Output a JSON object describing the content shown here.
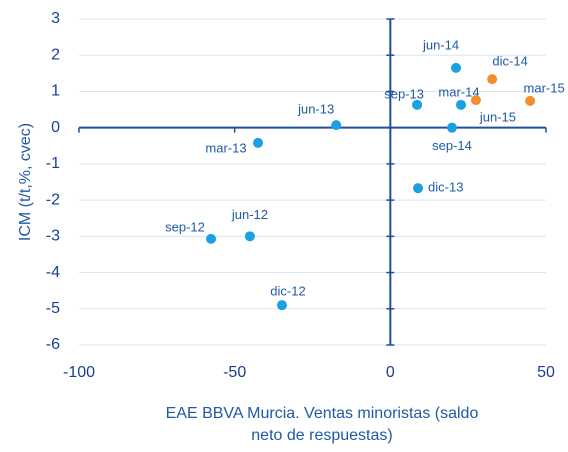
{
  "chart_data": {
    "type": "scatter",
    "y_label": "ICM (t/t,%, cvec)",
    "x_label": "EAE BBVA Murcia. Ventas minoristas (saldo neto de respuestas)",
    "xlim": [
      -100,
      50
    ],
    "xticks": [
      -100,
      -50,
      0,
      50
    ],
    "ylim": [
      -6,
      3
    ],
    "yticks": [
      -6,
      -5,
      -4,
      -3,
      -2,
      -1,
      0,
      1,
      2,
      3
    ],
    "grid": true,
    "series": [
      {
        "color": "#1ba1e2",
        "labels": [
          "jun-14",
          "sep-13",
          "mar-14",
          "sep-14",
          "jun-13",
          "mar-13",
          "dic-13",
          "jun-12",
          "sep-12",
          "dic-12"
        ],
        "x": [
          21.1,
          8.6,
          22.7,
          19.8,
          -17.4,
          -42.5,
          8.9,
          -45.1,
          -57.6,
          -34.8
        ],
        "values": [
          1.65,
          0.63,
          0.63,
          0,
          0.07,
          -0.42,
          -1.67,
          -3.0,
          -3.07,
          -4.9
        ]
      },
      {
        "color": "#f28e2b",
        "labels": [
          "dic-14",
          "jun-15",
          "mar-15"
        ],
        "x": [
          32.7,
          27.5,
          44.9
        ],
        "values": [
          1.34,
          0.76,
          0.74
        ]
      }
    ]
  }
}
